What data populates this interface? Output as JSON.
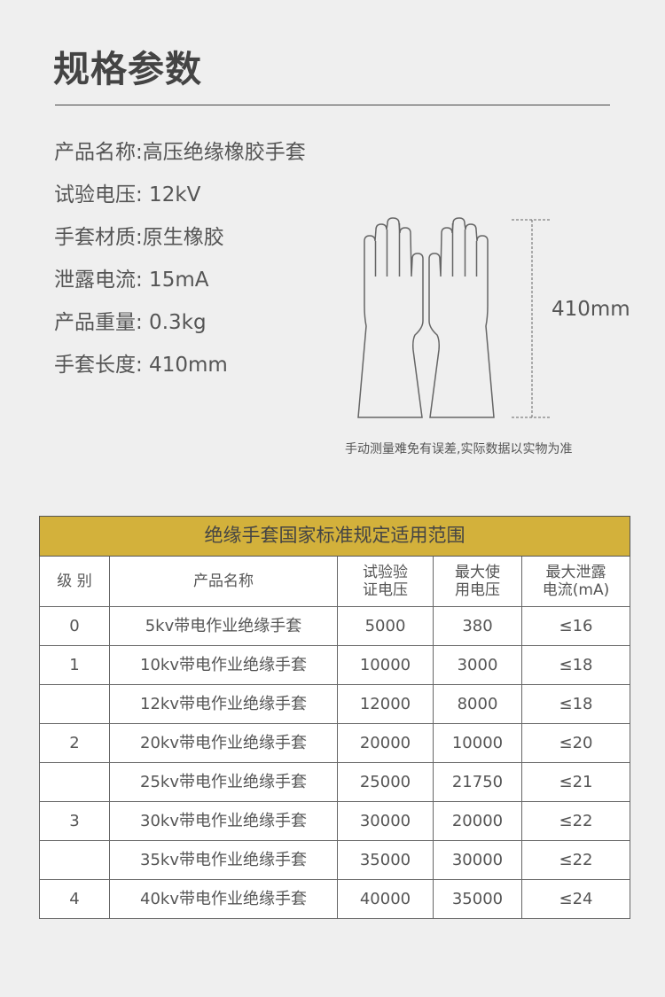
{
  "title": "规格参数",
  "specs": [
    "产品名称:高压绝缘橡胶手套",
    "试验电压: 12kV",
    "手套材质:原生橡胶",
    "泄露电流: 15mA",
    "产品重量: 0.3kg",
    "手套长度: 410mm"
  ],
  "length_label": "410mm",
  "note": "手动测量难免有误差,实际数据以实物为准",
  "table": {
    "caption": "绝缘手套国家标准规定适用范围",
    "headers": [
      "级 别",
      "产品名称",
      "试验验\n证电压",
      "最大使\n用电压",
      "最大泄露\n电流(mA)"
    ],
    "rows": [
      [
        "0",
        "5kv带电作业绝缘手套",
        "5000",
        "380",
        "≤16"
      ],
      [
        "1",
        "10kv带电作业绝缘手套",
        "10000",
        "3000",
        "≤18"
      ],
      [
        "",
        "12kv带电作业绝缘手套",
        "12000",
        "8000",
        "≤18"
      ],
      [
        "2",
        "20kv带电作业绝缘手套",
        "20000",
        "10000",
        "≤20"
      ],
      [
        "",
        "25kv带电作业绝缘手套",
        "25000",
        "21750",
        "≤21"
      ],
      [
        "3",
        "30kv带电作业绝缘手套",
        "30000",
        "20000",
        "≤22"
      ],
      [
        "",
        "35kv带电作业绝缘手套",
        "35000",
        "30000",
        "≤22"
      ],
      [
        "4",
        "40kv带电作业绝缘手套",
        "40000",
        "35000",
        "≤24"
      ]
    ]
  },
  "colors": {
    "background": "#efefef",
    "caption": "#d3b13b"
  }
}
